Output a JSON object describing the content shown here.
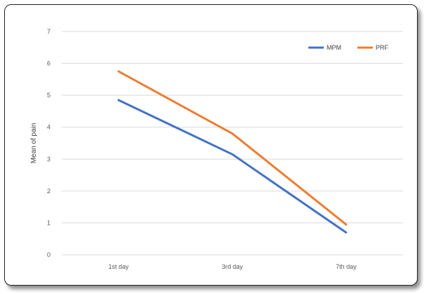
{
  "chart_data": {
    "type": "line",
    "categories": [
      "1st day",
      "3rd day",
      "7th day"
    ],
    "series": [
      {
        "name": "MPM",
        "values": [
          4.85,
          3.15,
          0.7
        ],
        "color": "#4472C4"
      },
      {
        "name": "PRF",
        "values": [
          5.75,
          3.8,
          0.95
        ],
        "color": "#ED7D31"
      }
    ],
    "title": "",
    "xlabel": "",
    "ylabel": "Mean of pain",
    "ylim": [
      0,
      7
    ],
    "yticks": [
      "0",
      "1",
      "2",
      "3",
      "4",
      "5",
      "6",
      "7"
    ],
    "grid": true,
    "legend_position": "top-right"
  }
}
